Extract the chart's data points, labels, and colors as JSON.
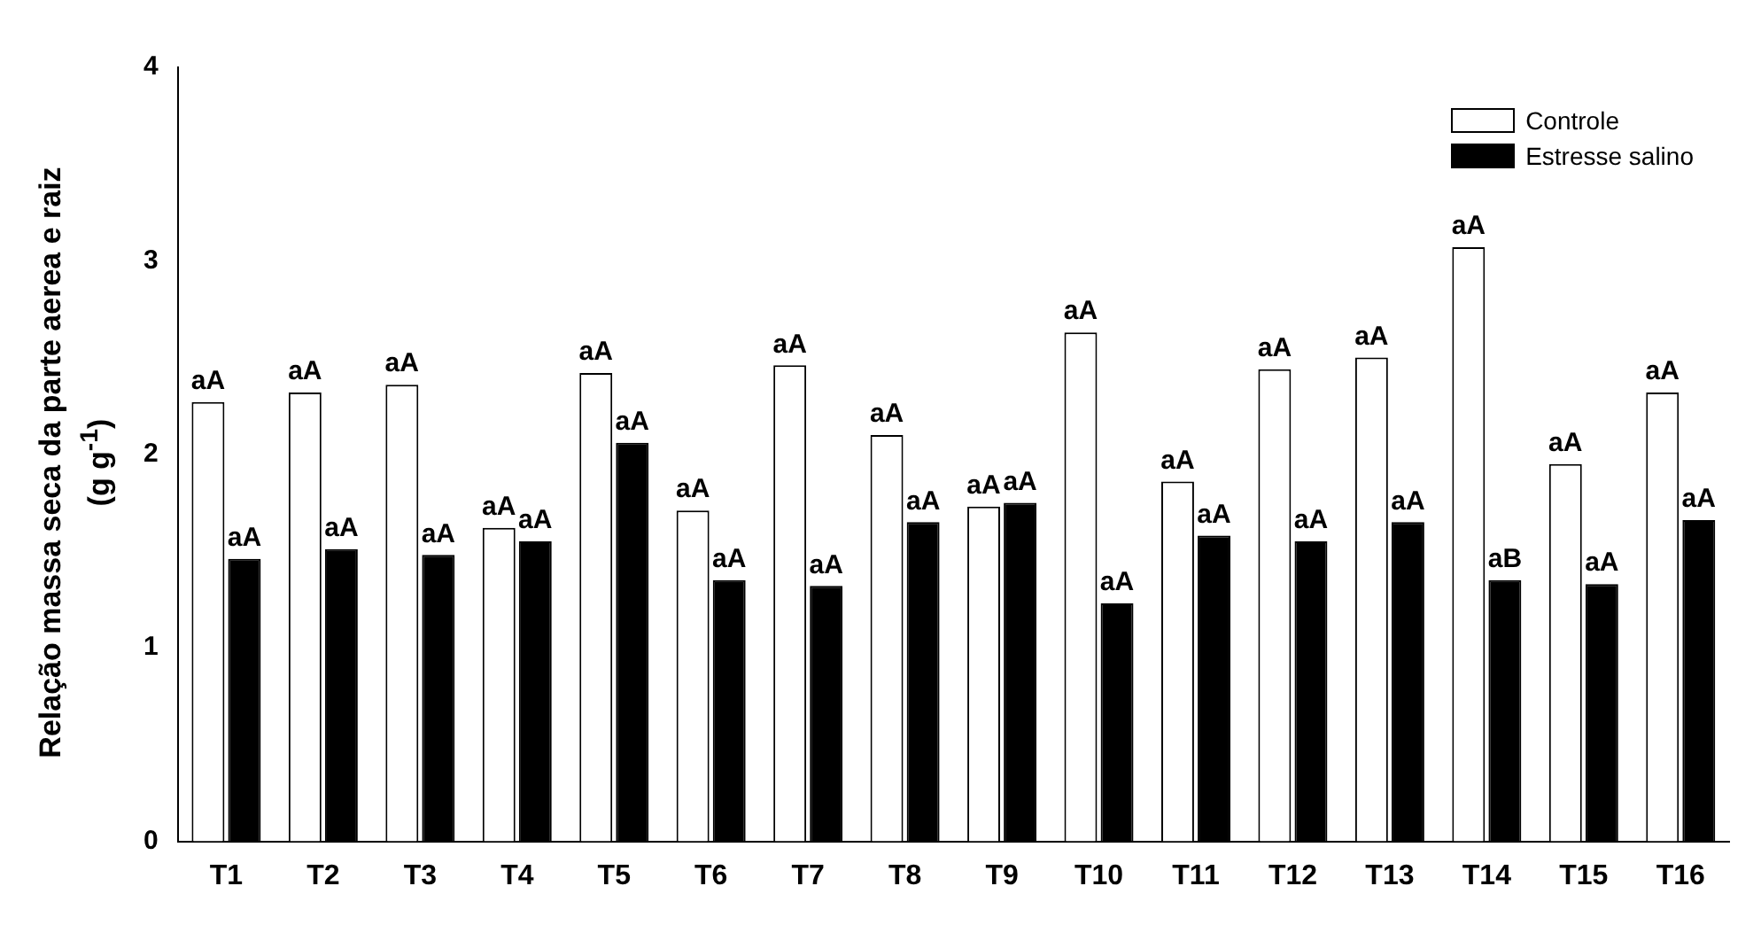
{
  "chart_data": {
    "type": "bar",
    "ylabel": "Relação massa seca da parte aerea e raiz (g g$^{-1}$)",
    "categories": [
      "T1",
      "T2",
      "T3",
      "T4",
      "T5",
      "T6",
      "T7",
      "T8",
      "T9",
      "T10",
      "T11",
      "T12",
      "T13",
      "T14",
      "T15",
      "T16"
    ],
    "series": [
      {
        "name": "Controle",
        "color": "#ffffff",
        "values": [
          2.27,
          2.32,
          2.36,
          1.62,
          2.42,
          1.71,
          2.46,
          2.1,
          1.73,
          2.63,
          1.86,
          2.44,
          2.5,
          3.07,
          1.95,
          2.32
        ],
        "value_labels": [
          "aA",
          "aA",
          "aA",
          "aA",
          "aA",
          "aA",
          "aA",
          "aA",
          "aA",
          "aA",
          "aA",
          "aA",
          "aA",
          "aA",
          "aA",
          "aA"
        ]
      },
      {
        "name": "Estresse salino",
        "color": "#000000",
        "values": [
          1.46,
          1.51,
          1.48,
          1.55,
          2.06,
          1.35,
          1.32,
          1.65,
          1.75,
          1.23,
          1.58,
          1.55,
          1.65,
          1.35,
          1.33,
          1.66
        ],
        "value_labels": [
          "aA",
          "aA",
          "aA",
          "aA",
          "aA",
          "aA",
          "aA",
          "aA",
          "aA",
          "aA",
          "aA",
          "aA",
          "aA",
          "aB",
          "aA",
          "aA"
        ]
      }
    ],
    "ylim": [
      0,
      4
    ],
    "yticks": [
      0,
      1,
      2,
      3,
      4
    ],
    "grid": false,
    "legend": "top right"
  }
}
